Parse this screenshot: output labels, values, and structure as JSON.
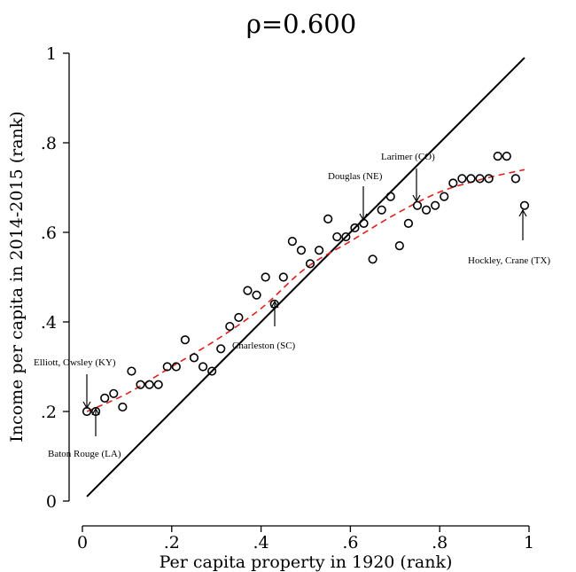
{
  "chart_data": {
    "type": "scatter",
    "title": "ρ=0.600",
    "xlabel": "Per capita property in 1920 (rank)",
    "ylabel": "Income per capita in 2014-2015 (rank)",
    "xlim": [
      0,
      1
    ],
    "ylim": [
      0,
      1
    ],
    "x_ticks": [
      "0",
      ".2",
      ".4",
      ".6",
      ".8",
      "1"
    ],
    "y_ticks": [
      "0",
      ".2",
      ".4",
      ".6",
      ".8",
      "1"
    ],
    "grid": false,
    "series": [
      {
        "marker": "hollow-circle",
        "color": "#000000",
        "points": [
          [
            0.01,
            0.2
          ],
          [
            0.03,
            0.2
          ],
          [
            0.05,
            0.23
          ],
          [
            0.07,
            0.24
          ],
          [
            0.09,
            0.21
          ],
          [
            0.11,
            0.29
          ],
          [
            0.13,
            0.26
          ],
          [
            0.15,
            0.26
          ],
          [
            0.17,
            0.26
          ],
          [
            0.19,
            0.3
          ],
          [
            0.21,
            0.3
          ],
          [
            0.23,
            0.36
          ],
          [
            0.25,
            0.32
          ],
          [
            0.27,
            0.3
          ],
          [
            0.29,
            0.29
          ],
          [
            0.31,
            0.34
          ],
          [
            0.33,
            0.39
          ],
          [
            0.35,
            0.41
          ],
          [
            0.37,
            0.47
          ],
          [
            0.39,
            0.46
          ],
          [
            0.41,
            0.5
          ],
          [
            0.43,
            0.44
          ],
          [
            0.45,
            0.5
          ],
          [
            0.47,
            0.58
          ],
          [
            0.49,
            0.56
          ],
          [
            0.51,
            0.53
          ],
          [
            0.53,
            0.56
          ],
          [
            0.55,
            0.63
          ],
          [
            0.57,
            0.59
          ],
          [
            0.59,
            0.59
          ],
          [
            0.61,
            0.61
          ],
          [
            0.63,
            0.62
          ],
          [
            0.65,
            0.54
          ],
          [
            0.67,
            0.65
          ],
          [
            0.69,
            0.68
          ],
          [
            0.71,
            0.57
          ],
          [
            0.73,
            0.62
          ],
          [
            0.75,
            0.66
          ],
          [
            0.77,
            0.65
          ],
          [
            0.79,
            0.66
          ],
          [
            0.81,
            0.68
          ],
          [
            0.83,
            0.71
          ],
          [
            0.85,
            0.72
          ],
          [
            0.87,
            0.72
          ],
          [
            0.89,
            0.72
          ],
          [
            0.91,
            0.72
          ],
          [
            0.93,
            0.77
          ],
          [
            0.95,
            0.77
          ],
          [
            0.97,
            0.72
          ],
          [
            0.99,
            0.66
          ]
        ]
      }
    ],
    "diagonal_line": {
      "color": "#000000",
      "style": "solid",
      "from": [
        0.01,
        0.01
      ],
      "to": [
        0.99,
        0.99
      ]
    },
    "fit_curve": {
      "color": "#e0201c",
      "style": "dashed",
      "points": [
        [
          0.01,
          0.2
        ],
        [
          0.1,
          0.24
        ],
        [
          0.2,
          0.3
        ],
        [
          0.3,
          0.36
        ],
        [
          0.4,
          0.43
        ],
        [
          0.5,
          0.52
        ],
        [
          0.6,
          0.58
        ],
        [
          0.7,
          0.64
        ],
        [
          0.8,
          0.69
        ],
        [
          0.9,
          0.72
        ],
        [
          0.99,
          0.74
        ]
      ]
    },
    "annotations": [
      {
        "text": "Elliott, Owsley (KY)",
        "x": 0.01,
        "y": 0.2,
        "arrow_from": "above"
      },
      {
        "text": "Baton Rouge (LA)",
        "x": 0.03,
        "y": 0.2,
        "arrow_from": "below"
      },
      {
        "text": "Charleston (SC)",
        "x": 0.43,
        "y": 0.44,
        "arrow_from": "below"
      },
      {
        "text": "Douglas (NE)",
        "x": 0.63,
        "y": 0.62,
        "arrow_from": "above"
      },
      {
        "text": "Larimer (CO)",
        "x": 0.75,
        "y": 0.66,
        "arrow_from": "above"
      },
      {
        "text": "Hockley, Crane (TX)",
        "x": 0.99,
        "y": 0.66,
        "arrow_from": "below"
      }
    ]
  }
}
